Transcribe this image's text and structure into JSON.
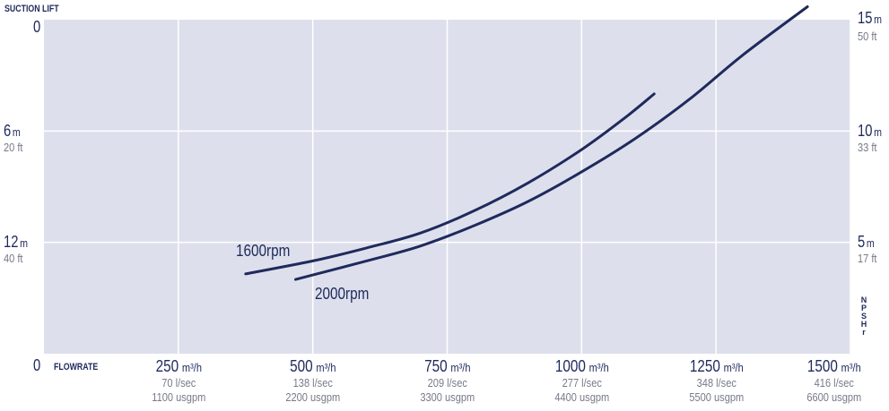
{
  "chart_data": {
    "type": "line",
    "left_axis": {
      "title": "SUCTION LIFT",
      "range_m": [
        0,
        18
      ],
      "ticks": [
        {
          "m": 0,
          "label": "0",
          "unit": "",
          "ft": ""
        },
        {
          "m": 6,
          "label": "6",
          "unit": "m",
          "ft": "20 ft"
        },
        {
          "m": 12,
          "label": "12",
          "unit": "m",
          "ft": "40 ft"
        }
      ]
    },
    "right_axis": {
      "title": "NPSHr",
      "ticks": [
        {
          "m": 0,
          "label": "15",
          "unit": "m",
          "ft": "50 ft"
        },
        {
          "m": 6,
          "label": "10",
          "unit": "m",
          "ft": "33 ft"
        },
        {
          "m": 12,
          "label": "5",
          "unit": "m",
          "ft": "17 ft"
        }
      ]
    },
    "x_axis": {
      "title": "FLOWRATE",
      "range": [
        0,
        1500
      ],
      "origin_label": "0",
      "ticks": [
        {
          "v": 250,
          "label": "250",
          "unit": "m³/h",
          "lsec": "70 l/sec",
          "usgpm": "1100 usgpm"
        },
        {
          "v": 500,
          "label": "500",
          "unit": "m³/h",
          "lsec": "138 l/sec",
          "usgpm": "2200 usgpm"
        },
        {
          "v": 750,
          "label": "750",
          "unit": "m³/h",
          "lsec": "209 l/sec",
          "usgpm": "3300 usgpm"
        },
        {
          "v": 1000,
          "label": "1000",
          "unit": "m³/h",
          "lsec": "277 l/sec",
          "usgpm": "4400 usgpm"
        },
        {
          "v": 1250,
          "label": "1250",
          "unit": "m³/h",
          "lsec": "348 l/sec",
          "usgpm": "5500 usgpm"
        },
        {
          "v": 1500,
          "label": "1500",
          "unit": "m³/h",
          "lsec": "416 l/sec",
          "usgpm": "6600 usgpm"
        }
      ]
    },
    "series": [
      {
        "name": "1600rpm",
        "points": [
          [
            375,
            13.7
          ],
          [
            500,
            13.0
          ],
          [
            600,
            12.3
          ],
          [
            700,
            11.5
          ],
          [
            800,
            10.3
          ],
          [
            900,
            8.8
          ],
          [
            1000,
            7.0
          ],
          [
            1080,
            5.3
          ],
          [
            1135,
            4.0
          ]
        ]
      },
      {
        "name": "2000rpm",
        "points": [
          [
            468,
            14.0
          ],
          [
            600,
            13.0
          ],
          [
            700,
            12.2
          ],
          [
            800,
            11.1
          ],
          [
            900,
            9.8
          ],
          [
            1000,
            8.2
          ],
          [
            1100,
            6.4
          ],
          [
            1200,
            4.3
          ],
          [
            1300,
            1.9
          ],
          [
            1420,
            -0.7
          ]
        ]
      }
    ],
    "grid": true,
    "colors": {
      "background": "#dde0ec",
      "grid": "#ffffff",
      "line": "#1f2a5c",
      "label": "#1f2a5c",
      "secondary_text": "#777a88"
    }
  }
}
